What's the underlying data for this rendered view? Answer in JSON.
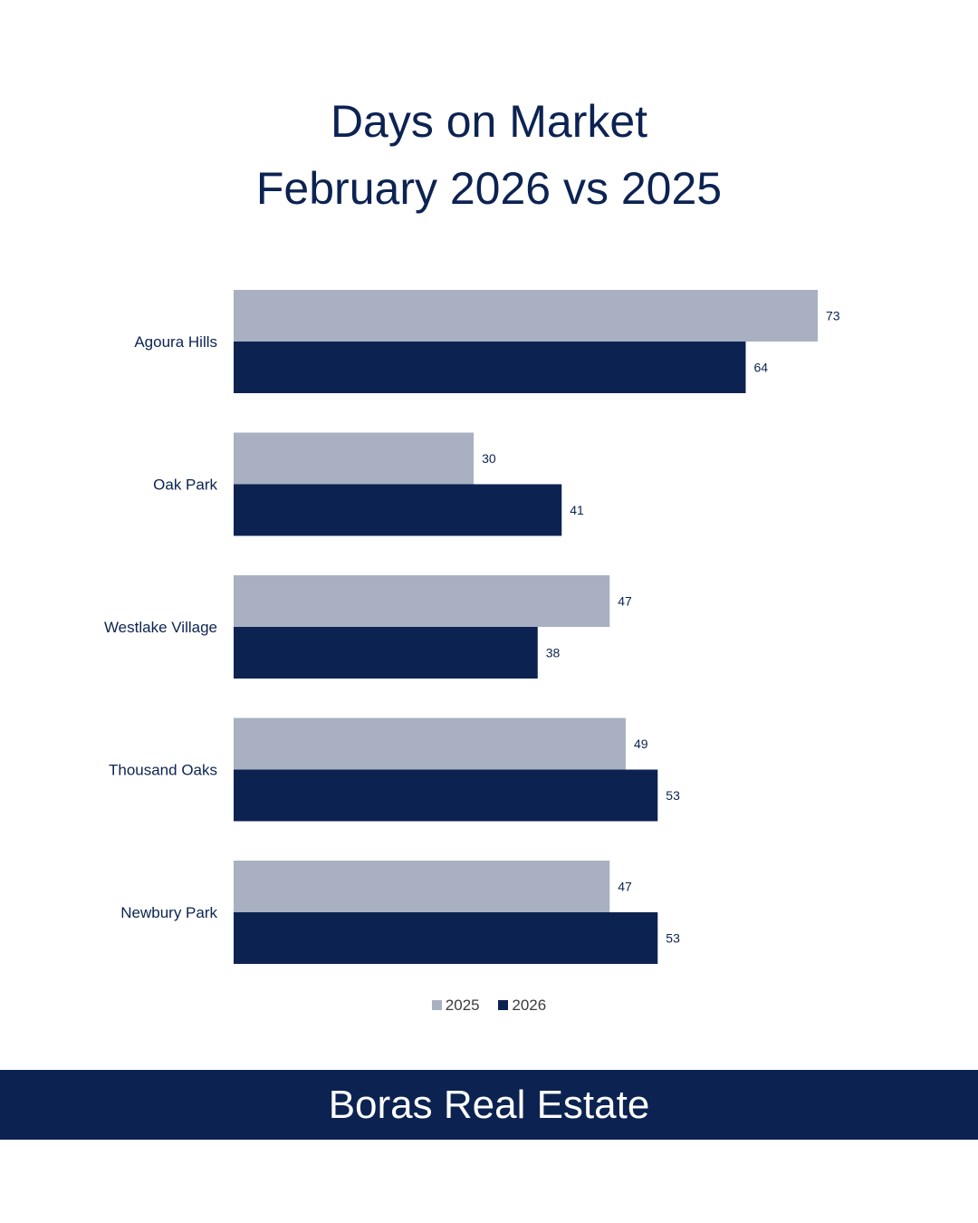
{
  "chart_data": {
    "type": "bar",
    "orientation": "horizontal",
    "title_line1": "Days on Market",
    "title_line2": "February 2026 vs 2025",
    "categories": [
      "Agoura Hills",
      "Oak Park",
      "Westlake Village",
      "Thousand Oaks",
      "Newbury Park"
    ],
    "series": [
      {
        "name": "2025",
        "values": [
          73,
          30,
          47,
          49,
          47
        ],
        "color": "#a8b0c2"
      },
      {
        "name": "2026",
        "values": [
          64,
          41,
          38,
          53,
          53
        ],
        "color": "#0c2352"
      }
    ],
    "xlim": [
      0,
      73
    ],
    "grid": false,
    "legend_position": "bottom"
  },
  "footer": {
    "brand": "Boras Real Estate"
  }
}
